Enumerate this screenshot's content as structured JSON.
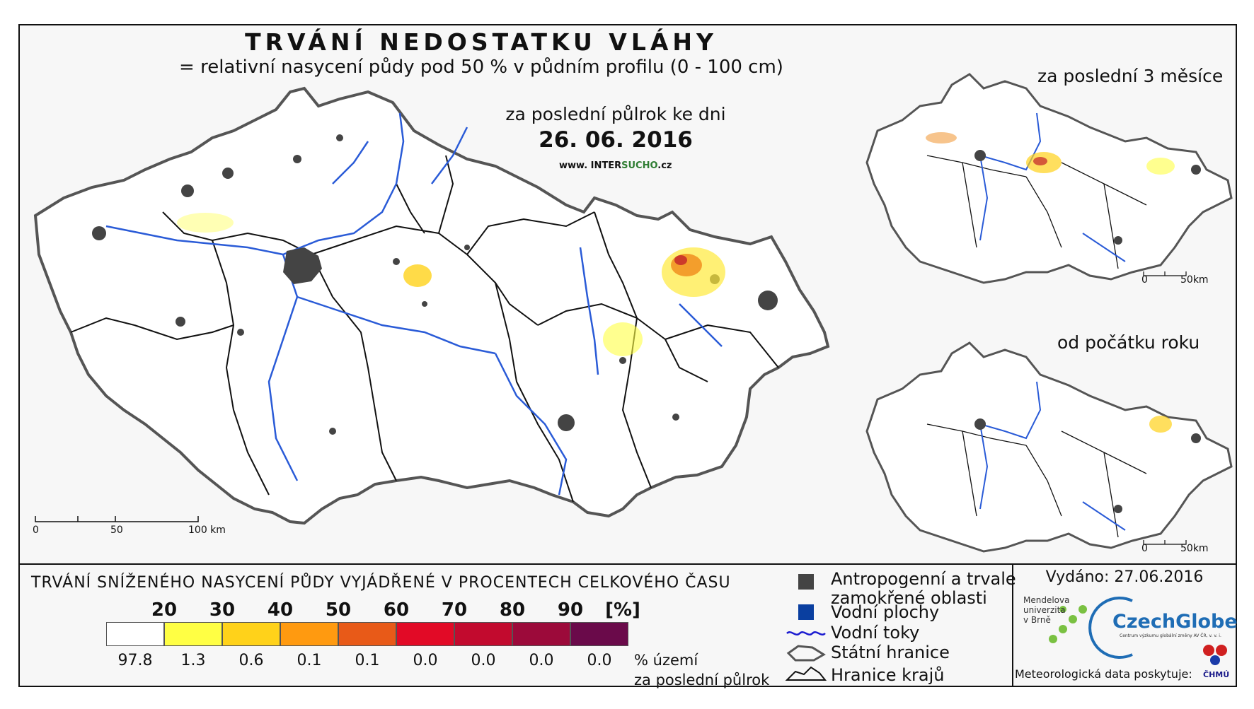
{
  "map": {
    "title": "TRVÁNÍ NEDOSTATKU VLÁHY",
    "subtitle": "= relativní nasycení půdy pod 50 % v půdním profilu (0 - 100 cm)",
    "period_label": "za poslední půlrok ke dni",
    "date": "26. 06. 2016",
    "website_prefix": "www. INTER",
    "website_highlight": "SUCHO",
    "website_suffix": ".cz",
    "scale_main": [
      "0",
      "50",
      "100 km"
    ],
    "scale_small": [
      "0",
      "50km"
    ]
  },
  "insets": {
    "top_title": "za poslední 3 měsíce",
    "bottom_title": "od počátku roku"
  },
  "legend": {
    "title": "TRVÁNÍ SNÍŽENÉHO NASYCENÍ PŮDY VYJÁDŘENÉ V PROCENTECH CELKOVÉHO ČASU",
    "thresholds": [
      "20",
      "30",
      "40",
      "50",
      "60",
      "70",
      "80",
      "90",
      "[%]"
    ],
    "colors": [
      "#ffffff",
      "#ffff44",
      "#ffd21a",
      "#ff9a10",
      "#e85a18",
      "#e20a26",
      "#c20a2e",
      "#9c0a3a",
      "#6a0a4a"
    ],
    "percent_territory": [
      "97.8",
      "1.3",
      "0.6",
      "0.1",
      "0.1",
      "0.0",
      "0.0",
      "0.0",
      "0.0"
    ],
    "caption_line1": "% území",
    "caption_line2": "za poslední půlrok"
  },
  "symbols": {
    "urban_line1": "Antropogenní a trvale",
    "urban_line2": "zamokřené oblasti",
    "water_bodies": "Vodní plochy",
    "rivers": "Vodní toky",
    "state_border": "Státní hranice",
    "region_border": "Hranice krajů",
    "urban_color": "#444444",
    "water_color": "#0a3fa0",
    "river_color": "#2a5bd7"
  },
  "credits": {
    "issued": "Vydáno: 27.06.2016",
    "mendel_line1": "Mendelova",
    "mendel_line2": "univerzita",
    "mendel_line3": "v Brně",
    "czechglobe": "CzechGlobe",
    "czechglobe_sub": "Centrum výzkumu globální změny AV ČR, v. v. i.",
    "meteo": "Meteorologická data poskytuje:",
    "chmu": "ČHMÚ"
  }
}
